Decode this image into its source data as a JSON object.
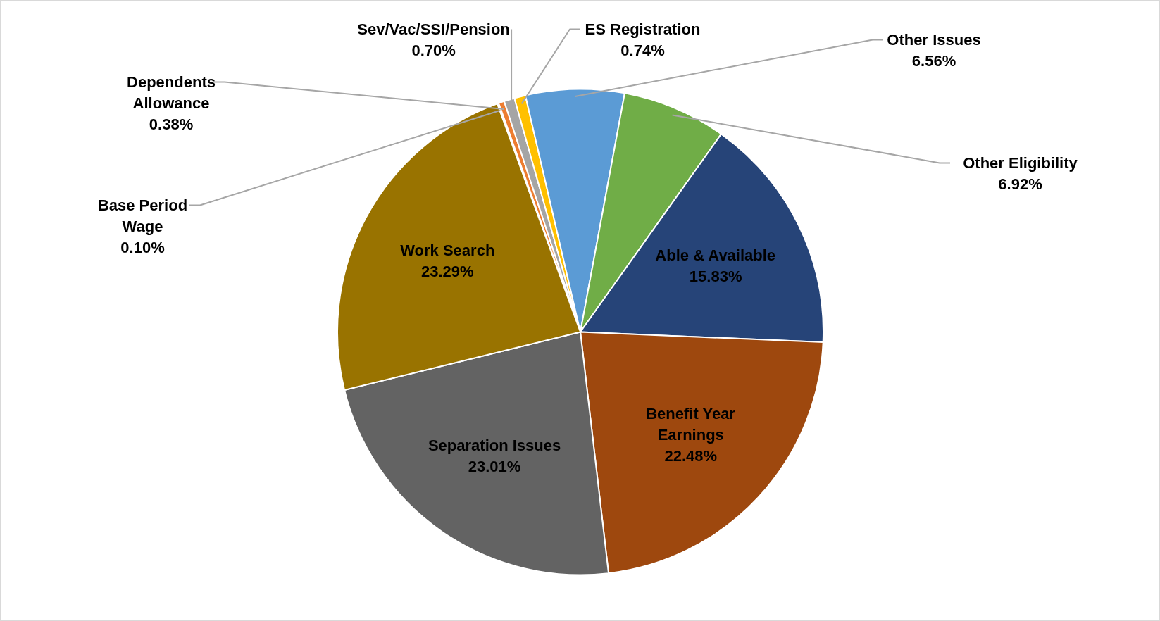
{
  "chart_data": {
    "type": "pie",
    "categories": [
      "Base Period Wage",
      "Dependents Allowance",
      "Sev/Vac/SSI/Pension",
      "ES Registration",
      "Other Issues",
      "Other Eligibility",
      "Able & Available",
      "Benefit Year Earnings",
      "Separation Issues",
      "Work Search"
    ],
    "values": [
      0.1,
      0.38,
      0.7,
      0.74,
      6.56,
      6.92,
      15.83,
      22.48,
      23.01,
      23.29
    ],
    "colors": [
      "#4472c4",
      "#ed7d31",
      "#a5a5a5",
      "#ffc000",
      "#5b9bd5",
      "#70ad47",
      "#264478",
      "#9e480e",
      "#636363",
      "#997300"
    ],
    "value_labels": [
      "0.10%",
      "0.38%",
      "0.70%",
      "0.74%",
      "6.56%",
      "6.92%",
      "15.83%",
      "22.48%",
      "23.01%",
      "23.29%"
    ]
  }
}
